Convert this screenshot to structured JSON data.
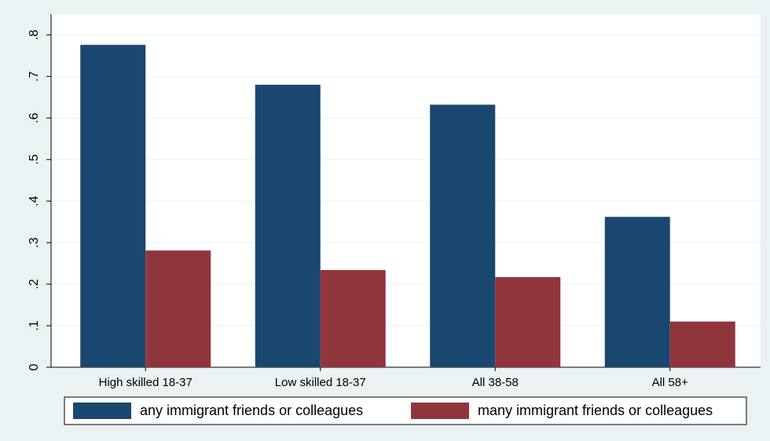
{
  "chart_data": {
    "type": "bar",
    "categories": [
      "High skilled 18-37",
      "Low skilled 18-37",
      "All 38-58",
      "All 58+"
    ],
    "series": [
      {
        "name": "any immigrant friends or colleagues",
        "color": "#1a476f",
        "values": [
          0.776,
          0.68,
          0.632,
          0.362
        ]
      },
      {
        "name": "many immigrant friends or colleagues",
        "color": "#90353b",
        "values": [
          0.281,
          0.234,
          0.217,
          0.11
        ]
      }
    ],
    "ylim": [
      0,
      0.85
    ],
    "yticks": [
      0,
      {
        "value": 0.1,
        "label": ".1"
      },
      {
        "value": 0.2,
        "label": ".2"
      },
      {
        "value": 0.3,
        "label": ".3"
      },
      {
        "value": 0.4,
        "label": ".4"
      },
      {
        "value": 0.5,
        "label": ".5"
      },
      {
        "value": 0.6,
        "label": ".6"
      },
      {
        "value": 0.7,
        "label": ".7"
      },
      {
        "value": 0.8,
        "label": ".8"
      }
    ],
    "grid": true
  }
}
